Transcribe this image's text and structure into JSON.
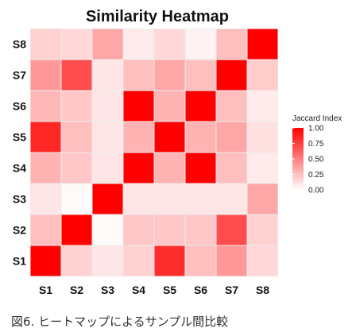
{
  "chart_data": {
    "type": "heatmap",
    "title": "Similarity Heatmap",
    "x_categories": [
      "S1",
      "S2",
      "S3",
      "S4",
      "S5",
      "S6",
      "S7",
      "S8"
    ],
    "y_categories": [
      "S1",
      "S2",
      "S3",
      "S4",
      "S5",
      "S6",
      "S7",
      "S8"
    ],
    "matrix": [
      [
        1.0,
        0.18,
        0.1,
        0.18,
        0.82,
        0.25,
        0.4,
        0.15
      ],
      [
        0.25,
        1.0,
        0.02,
        0.22,
        0.22,
        0.22,
        0.7,
        0.18
      ],
      [
        0.1,
        0.02,
        1.0,
        0.1,
        0.1,
        0.1,
        0.1,
        0.35
      ],
      [
        0.3,
        0.22,
        0.1,
        1.0,
        0.3,
        1.0,
        0.25,
        0.08
      ],
      [
        0.85,
        0.25,
        0.1,
        0.3,
        1.0,
        0.3,
        0.35,
        0.12
      ],
      [
        0.28,
        0.22,
        0.1,
        1.0,
        0.3,
        1.0,
        0.25,
        0.08
      ],
      [
        0.4,
        0.7,
        0.1,
        0.25,
        0.35,
        0.25,
        1.0,
        0.2
      ],
      [
        0.18,
        0.15,
        0.35,
        0.08,
        0.15,
        0.05,
        0.25,
        1.0
      ]
    ],
    "color_scale": {
      "min": 0.0,
      "max": 1.0,
      "low_color": "#ffffff",
      "high_color": "#ff0000"
    },
    "legend": {
      "title": "Jaccard Index",
      "ticks": [
        "1.00",
        "0.75",
        "0.50",
        "0.25",
        "0.00"
      ],
      "position": "right"
    },
    "panel_background": "#ebebeb"
  },
  "caption": "図6.  ヒートマップによるサンプル間比較"
}
